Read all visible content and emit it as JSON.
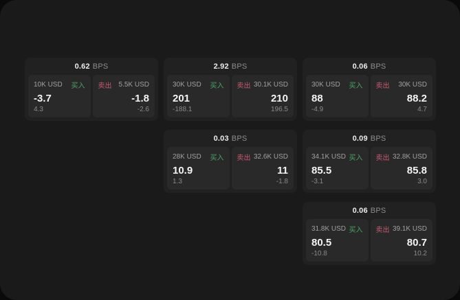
{
  "labels": {
    "bps_unit": "BPS",
    "buy": "买入",
    "sell": "卖出"
  },
  "colors": {
    "buy_green": "#4aa368",
    "sell_red": "#c65a6e",
    "window_bg": "#1a1a1a",
    "card_bg": "#212121",
    "panel_bg": "#292929"
  },
  "cards": [
    {
      "row": 1,
      "col": 1,
      "bps": "0.62",
      "buy": {
        "size": "10K USD",
        "value": "-3.7",
        "delta": "4.3"
      },
      "sell": {
        "size": "5.5K USD",
        "value": "-1.8",
        "delta": "-2.6"
      }
    },
    {
      "row": 1,
      "col": 2,
      "bps": "2.92",
      "buy": {
        "size": "30K USD",
        "value": "201",
        "delta": "-188.1"
      },
      "sell": {
        "size": "30.1K USD",
        "value": "210",
        "delta": "196.5"
      }
    },
    {
      "row": 1,
      "col": 3,
      "bps": "0.06",
      "buy": {
        "size": "30K USD",
        "value": "88",
        "delta": "-4.9"
      },
      "sell": {
        "size": "30K USD",
        "value": "88.2",
        "delta": "4.7"
      }
    },
    {
      "row": 2,
      "col": 2,
      "bps": "0.03",
      "buy": {
        "size": "28K USD",
        "value": "10.9",
        "delta": "1.3"
      },
      "sell": {
        "size": "32.6K USD",
        "value": "11",
        "delta": "-1.8"
      }
    },
    {
      "row": 2,
      "col": 3,
      "bps": "0.09",
      "buy": {
        "size": "34.1K USD",
        "value": "85.5",
        "delta": "-3.1"
      },
      "sell": {
        "size": "32.8K USD",
        "value": "85.8",
        "delta": "3.0"
      }
    },
    {
      "row": 3,
      "col": 3,
      "bps": "0.06",
      "buy": {
        "size": "31.8K USD",
        "value": "80.5",
        "delta": "-10.8"
      },
      "sell": {
        "size": "39.1K USD",
        "value": "80.7",
        "delta": "10.2"
      }
    }
  ]
}
